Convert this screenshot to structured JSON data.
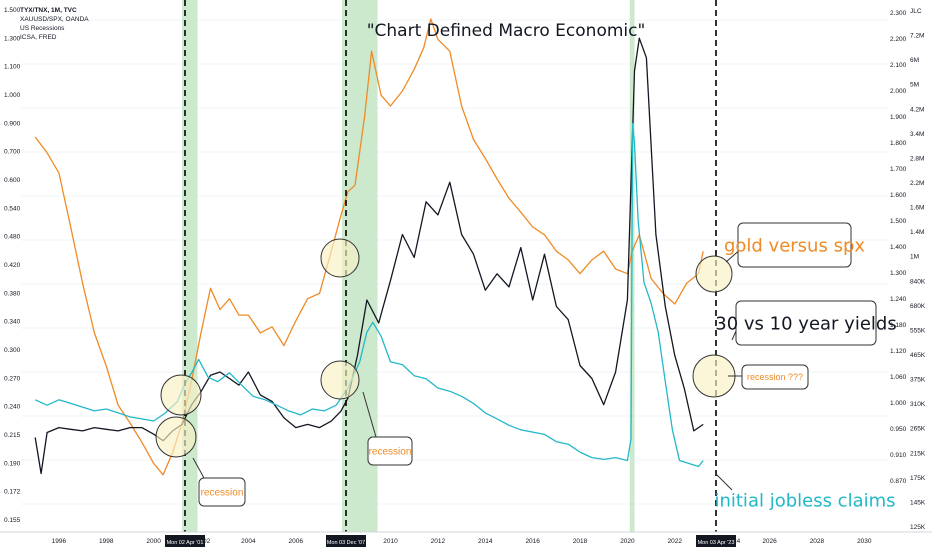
{
  "chart_data": {
    "type": "line",
    "title": "\"Chart Defined Macro Economic\"",
    "legend_entries": [
      "TYX/TNX, 1M, TVC",
      "XAUUSD/SPX, OANDA",
      "US Recessions",
      "ICSA, FRED"
    ],
    "x_ticks": [
      "1996",
      "1998",
      "2000",
      "2004",
      "2006",
      "2010",
      "2012",
      "2014",
      "2016",
      "2018",
      "2020",
      "2022",
      "2026",
      "2028",
      "2030"
    ],
    "partial_tick": "02",
    "partial_tick_right": "24",
    "date_markers": [
      "Mon 02 Apr '01",
      "Mon 03 Dec '07",
      "Mon 03 Apr '23"
    ],
    "left_axis_ticks": [
      "1.500",
      "1.300",
      "1.100",
      "1.000",
      "0.900",
      "0.700",
      "0.600",
      "0.540",
      "0.480",
      "0.420",
      "0.380",
      "0.340",
      "0.300",
      "0.270",
      "0.240",
      "0.215",
      "0.190",
      "0.172",
      "0.155"
    ],
    "right_axis_ticks": [
      "2.300",
      "2.200",
      "2.100",
      "2.000",
      "1.900",
      "1.800",
      "1.700",
      "1.600",
      "1.500",
      "1.400",
      "1.300",
      "1.240",
      "1.180",
      "1.120",
      "1.060",
      "1.000",
      "0.950",
      "0.910",
      "0.870"
    ],
    "right_axis_ticks_2": [
      "JLC",
      "7.2M",
      "6M",
      "5M",
      "4.2M",
      "3.4M",
      "2.8M",
      "2.2M",
      "1.6M",
      "1.4M",
      "1M",
      "840K",
      "680K",
      "555K",
      "465K",
      "375K",
      "310K",
      "265K",
      "215K",
      "175K",
      "145K",
      "125K"
    ],
    "recession_bands": [
      [
        "2001.2",
        "2001.85"
      ],
      [
        "2007.95",
        "2009.45"
      ],
      [
        "2020.1",
        "2020.3"
      ]
    ],
    "annotations": [
      {
        "text": "gold versus spx",
        "color": "#f08a24"
      },
      {
        "text": "30 vs 10 year yields",
        "color": "#131722"
      },
      {
        "text": "recession ???",
        "color": "#f08a24"
      },
      {
        "text": "initial jobless claims",
        "color": "#22b8c9"
      },
      {
        "text": "recession",
        "color": "#f08a24"
      },
      {
        "text": "recession",
        "color": "#f08a24"
      }
    ],
    "series": [
      {
        "name": "XAUUSD/SPX, OANDA",
        "color": "#f08a24",
        "x": [
          1995.0,
          1995.5,
          1996.0,
          1996.5,
          1997.0,
          1997.5,
          1998.0,
          1998.5,
          1999.0,
          1999.5,
          2000.0,
          2000.4,
          2000.8,
          2001.2,
          2001.6,
          2002.0,
          2002.4,
          2002.8,
          2003.2,
          2003.6,
          2004.0,
          2004.5,
          2005.0,
          2005.5,
          2006.0,
          2006.5,
          2007.0,
          2007.5,
          2007.9,
          2008.2,
          2008.5,
          2008.9,
          2009.2,
          2009.6,
          2010.0,
          2010.5,
          2011.0,
          2011.4,
          2011.7,
          2012.0,
          2012.5,
          2013.0,
          2013.5,
          2014.0,
          2014.5,
          2015.0,
          2015.5,
          2016.0,
          2016.5,
          2017.0,
          2017.5,
          2018.0,
          2018.5,
          2019.0,
          2019.5,
          2020.0,
          2020.2,
          2020.5,
          2021.0,
          2021.5,
          2022.0,
          2022.5,
          2023.0,
          2023.2
        ],
        "y": [
          0.87,
          0.81,
          0.74,
          0.58,
          0.45,
          0.36,
          0.31,
          0.26,
          0.24,
          0.22,
          0.2,
          0.19,
          0.21,
          0.24,
          0.29,
          0.36,
          0.44,
          0.4,
          0.42,
          0.39,
          0.39,
          0.36,
          0.37,
          0.34,
          0.38,
          0.42,
          0.43,
          0.52,
          0.61,
          0.68,
          0.7,
          0.95,
          1.28,
          1.05,
          1.0,
          1.07,
          1.18,
          1.3,
          1.48,
          1.35,
          1.28,
          1.0,
          0.86,
          0.79,
          0.72,
          0.66,
          0.62,
          0.58,
          0.56,
          0.52,
          0.5,
          0.47,
          0.5,
          0.52,
          0.48,
          0.47,
          0.52,
          0.56,
          0.46,
          0.43,
          0.41,
          0.45,
          0.47,
          0.52
        ]
      },
      {
        "name": "TYX/TNX, 1M, TVC",
        "color": "#131722",
        "x": [
          1995.0,
          1995.25,
          1995.5,
          1996.0,
          1996.5,
          1997.0,
          1997.5,
          1998.0,
          1998.5,
          1999.0,
          1999.5,
          2000.0,
          2000.4,
          2000.8,
          2001.2,
          2001.6,
          2002.0,
          2002.4,
          2002.8,
          2003.2,
          2003.6,
          2004.0,
          2004.5,
          2005.0,
          2005.5,
          2006.0,
          2006.5,
          2007.0,
          2007.5,
          2007.9,
          2008.2,
          2008.6,
          2009.0,
          2009.5,
          2010.0,
          2010.5,
          2011.0,
          2011.5,
          2012.0,
          2012.5,
          2013.0,
          2013.5,
          2014.0,
          2014.5,
          2015.0,
          2015.5,
          2016.0,
          2016.5,
          2017.0,
          2017.5,
          2018.0,
          2018.5,
          2019.0,
          2019.5,
          2020.0,
          2020.3,
          2020.5,
          2020.8,
          2021.2,
          2021.6,
          2022.0,
          2022.4,
          2022.8,
          2023.2
        ],
        "y": [
          1.0,
          0.89,
          1.015,
          1.03,
          1.025,
          1.02,
          1.03,
          1.025,
          1.02,
          1.03,
          1.03,
          1.01,
          0.99,
          1.02,
          1.04,
          1.1,
          1.14,
          1.19,
          1.2,
          1.18,
          1.16,
          1.2,
          1.13,
          1.11,
          1.06,
          1.03,
          1.04,
          1.03,
          1.05,
          1.08,
          1.12,
          1.25,
          1.42,
          1.35,
          1.48,
          1.62,
          1.55,
          1.72,
          1.68,
          1.78,
          1.62,
          1.56,
          1.45,
          1.5,
          1.46,
          1.58,
          1.42,
          1.56,
          1.4,
          1.36,
          1.22,
          1.18,
          1.1,
          1.2,
          1.42,
          2.12,
          2.22,
          2.16,
          1.62,
          1.4,
          1.25,
          1.15,
          1.02,
          1.04
        ]
      },
      {
        "name": "ICSA, FRED",
        "color": "#22b8c9",
        "x": [
          1995.0,
          1995.5,
          1996.0,
          1996.5,
          1997.0,
          1997.5,
          1998.0,
          1998.5,
          1999.0,
          1999.5,
          2000.0,
          2000.5,
          2001.0,
          2001.3,
          2001.6,
          2001.9,
          2002.3,
          2002.7,
          2003.2,
          2003.7,
          2004.2,
          2004.7,
          2005.2,
          2005.7,
          2006.2,
          2006.7,
          2007.2,
          2007.7,
          2008.2,
          2008.7,
          2009.0,
          2009.25,
          2009.6,
          2010.0,
          2010.5,
          2011.0,
          2011.5,
          2012.0,
          2012.5,
          2013.0,
          2013.5,
          2014.0,
          2014.5,
          2015.0,
          2015.5,
          2016.0,
          2016.5,
          2017.0,
          2017.5,
          2018.0,
          2018.5,
          2019.0,
          2019.5,
          2020.0,
          2020.15,
          2020.22,
          2020.3,
          2020.45,
          2020.7,
          2021.0,
          2021.3,
          2021.6,
          2021.9,
          2022.2,
          2022.6,
          2023.0,
          2023.2
        ],
        "y": [
          345000,
          330000,
          345000,
          335000,
          325000,
          315000,
          320000,
          310000,
          300000,
          295000,
          290000,
          310000,
          340000,
          390000,
          430000,
          480000,
          415000,
          400000,
          430000,
          390000,
          355000,
          345000,
          330000,
          315000,
          305000,
          320000,
          315000,
          330000,
          380000,
          470000,
          600000,
          650000,
          580000,
          470000,
          460000,
          420000,
          410000,
          380000,
          370000,
          355000,
          335000,
          310000,
          295000,
          280000,
          270000,
          265000,
          260000,
          245000,
          240000,
          225000,
          215000,
          212000,
          215000,
          210000,
          250000,
          3300000,
          2800000,
          1500000,
          900000,
          760000,
          600000,
          400000,
          270000,
          210000,
          205000,
          200000,
          210000
        ]
      }
    ]
  }
}
